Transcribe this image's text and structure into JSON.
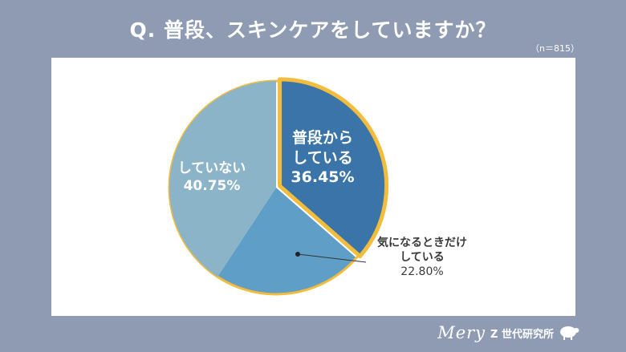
{
  "header": {
    "title": "Q. 普段、スキンケアをしていますか？",
    "sample": "（n＝815）"
  },
  "chart_data": {
    "type": "pie",
    "start_angle": "top, clockwise",
    "slices": [
      {
        "label": "普段から\nしている",
        "value": 36.45,
        "value_text": "36.45%",
        "color": "#3b74a8",
        "highlighted": true
      },
      {
        "label": "気になるときだけ\nしている",
        "value": 22.8,
        "value_text": "22.80%",
        "color": "#5f9ec7",
        "highlighted": false
      },
      {
        "label": "していない",
        "value": 40.75,
        "value_text": "40.75%",
        "color": "#8bb4c8",
        "highlighted": false
      }
    ],
    "highlight_color": "#f2bd3c"
  },
  "brand": {
    "script": "Mery",
    "name": "Z 世代研究所"
  }
}
